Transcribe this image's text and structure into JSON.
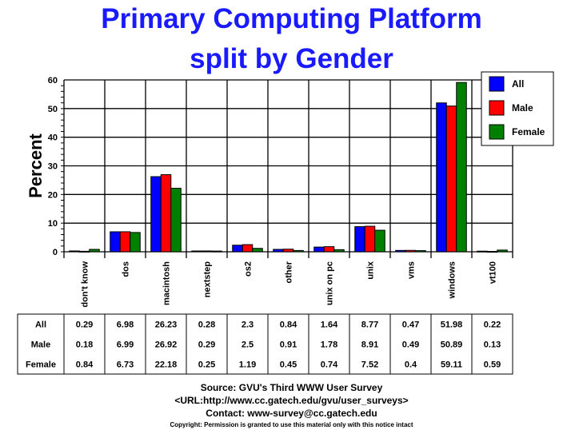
{
  "chart_data": {
    "type": "bar",
    "title": "Primary Computing Platform",
    "subtitle": "split by Gender",
    "ylabel": "Percent",
    "xlabel": "",
    "ylim": [
      0,
      60
    ],
    "yticks": [
      0,
      10,
      20,
      30,
      40,
      50,
      60
    ],
    "grid": true,
    "legend_position": "top-right",
    "categories": [
      "don't know",
      "dos",
      "macintosh",
      "nextstep",
      "os2",
      "other",
      "unix on pc",
      "unix",
      "vms",
      "windows",
      "vt100"
    ],
    "series": [
      {
        "name": "All",
        "color": "#0000ff",
        "values": [
          0.29,
          6.98,
          26.23,
          0.28,
          2.3,
          0.84,
          1.64,
          8.77,
          0.47,
          51.98,
          0.22
        ]
      },
      {
        "name": "Male",
        "color": "#ff0000",
        "values": [
          0.18,
          6.99,
          26.92,
          0.29,
          2.5,
          0.91,
          1.78,
          8.91,
          0.49,
          50.89,
          0.13
        ]
      },
      {
        "name": "Female",
        "color": "#008000",
        "values": [
          0.84,
          6.73,
          22.18,
          0.25,
          1.19,
          0.45,
          0.74,
          7.52,
          0.4,
          59.11,
          0.59
        ]
      }
    ],
    "table_labels": [
      "0.29",
      "6.98",
      "26.23",
      "0.28",
      "2.3",
      "0.84",
      "1.64",
      "8.77",
      "0.47",
      "51.98",
      "0.22",
      "0.18",
      "6.99",
      "26.92",
      "0.29",
      "2.5",
      "0.91",
      "1.78",
      "8.91",
      "0.49",
      "50.89",
      "0.13",
      "0.84",
      "6.73",
      "22.18",
      "0.25",
      "1.19",
      "0.45",
      "0.74",
      "7.52",
      "0.4",
      "59.11",
      "0.59"
    ]
  },
  "footer": {
    "source": "Source: GVU's Third WWW User Survey",
    "url": "<URL:http://www.cc.gatech.edu/gvu/user_surveys>",
    "contact": "Contact: www-survey@cc.gatech.edu",
    "copyright": "Copyright: Permission is granted to use this material only with this notice intact"
  }
}
